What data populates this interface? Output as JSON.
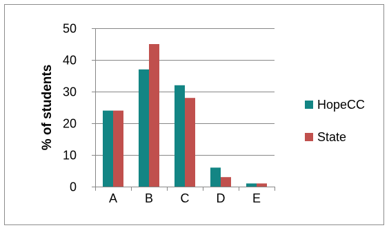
{
  "chart_data": {
    "type": "bar",
    "categories": [
      "A",
      "B",
      "C",
      "D",
      "E"
    ],
    "series": [
      {
        "name": "HopeCC",
        "values": [
          24,
          37,
          32,
          6,
          1
        ],
        "color": "#138584"
      },
      {
        "name": "State",
        "values": [
          24,
          45,
          28,
          3,
          1
        ],
        "color": "#c0504d"
      }
    ],
    "xlabel": "",
    "ylabel": "% of students",
    "ylim": [
      0,
      50
    ],
    "yticks": [
      0,
      10,
      20,
      30,
      40,
      50
    ],
    "grid": true,
    "legend_placement": "right",
    "gridline_color": "#868686"
  }
}
